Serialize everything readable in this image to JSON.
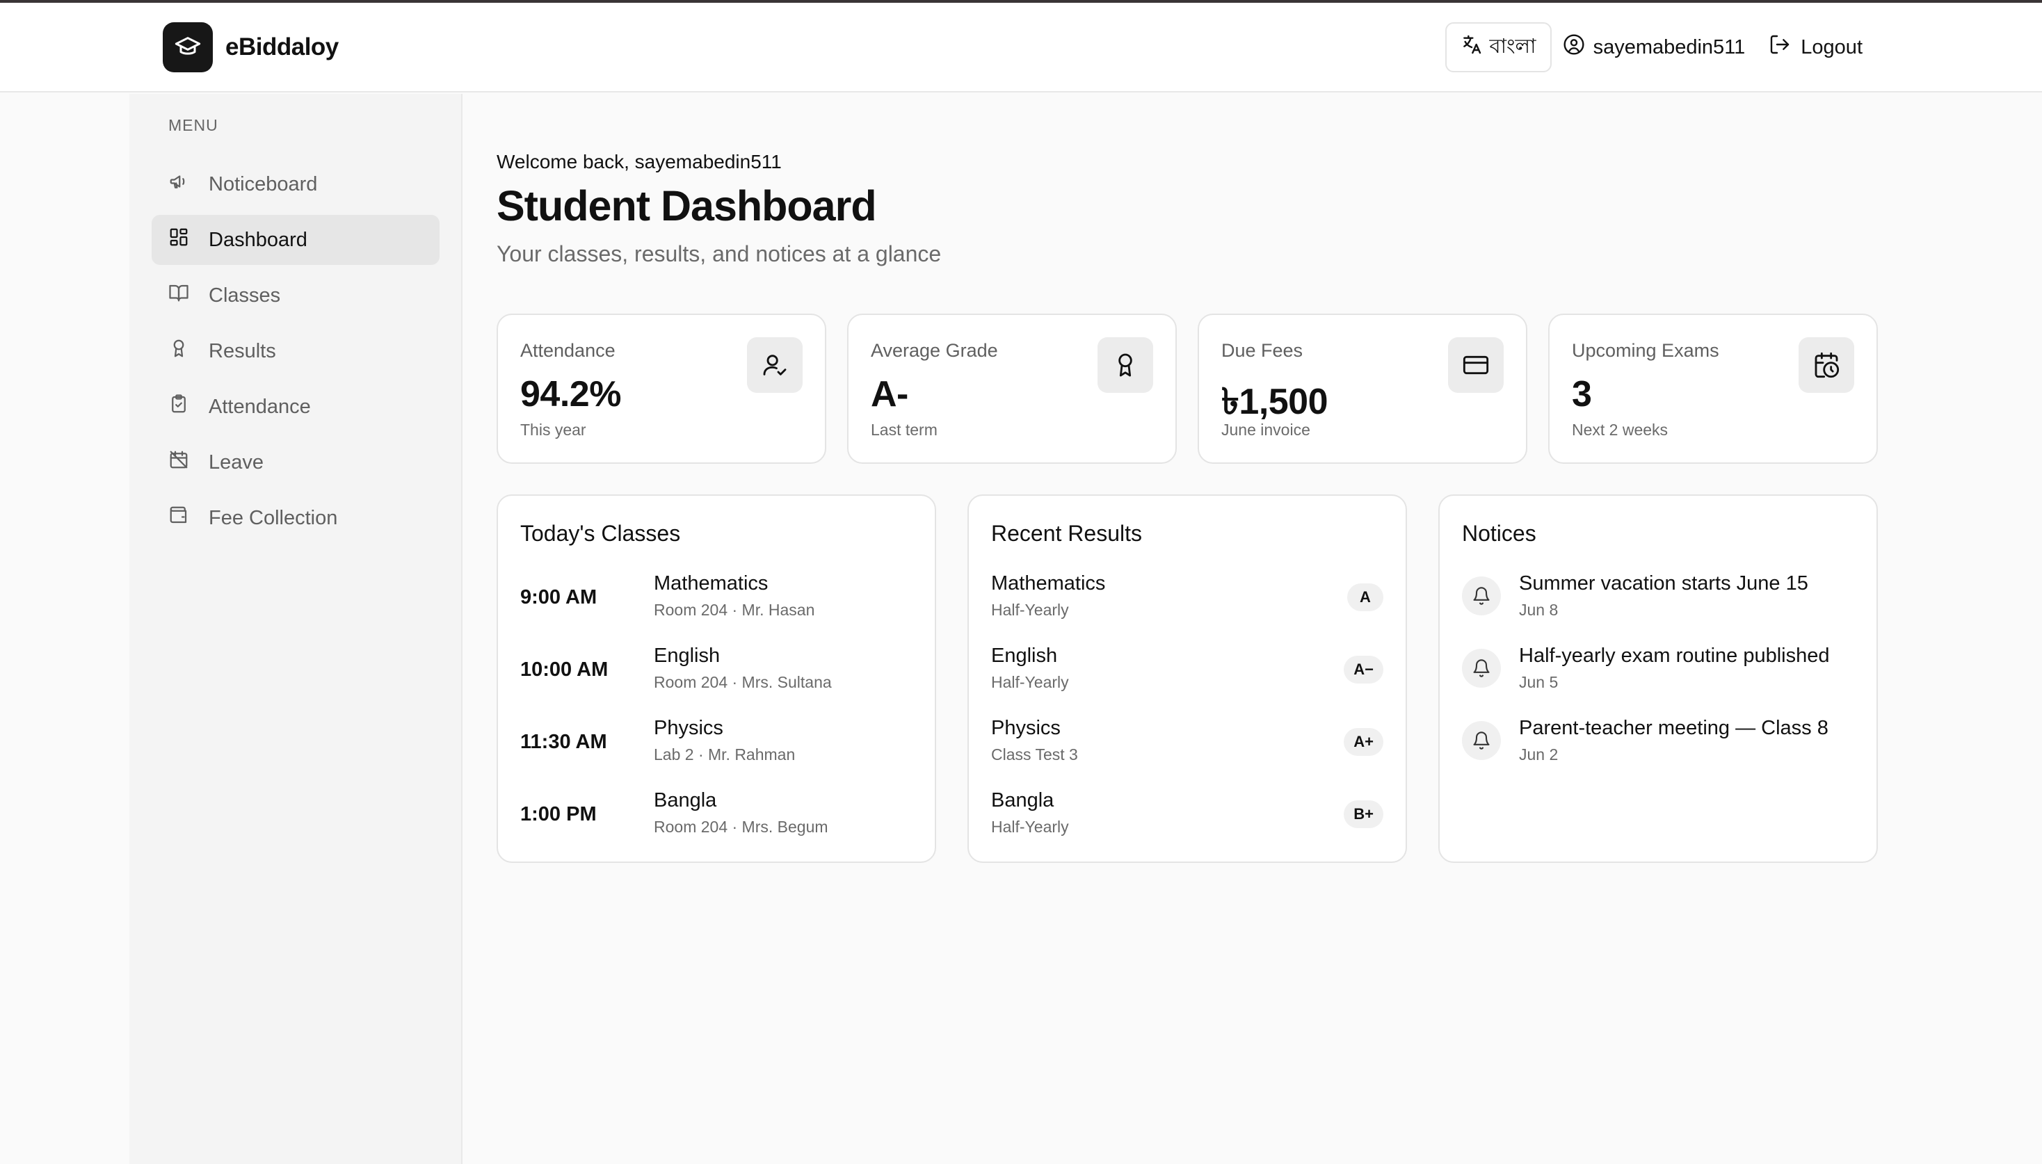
{
  "header": {
    "brand": "eBiddaloy",
    "language_label": "বাংলা",
    "username": "sayemabedin511",
    "logout_label": "Logout"
  },
  "sidebar": {
    "menu_label": "MENU",
    "items": [
      {
        "label": "Noticeboard",
        "icon": "megaphone-icon"
      },
      {
        "label": "Dashboard",
        "icon": "dashboard-icon",
        "active": true
      },
      {
        "label": "Classes",
        "icon": "book-icon"
      },
      {
        "label": "Results",
        "icon": "award-icon"
      },
      {
        "label": "Attendance",
        "icon": "clipboard-check-icon"
      },
      {
        "label": "Leave",
        "icon": "calendar-off-icon"
      },
      {
        "label": "Fee Collection",
        "icon": "wallet-icon"
      }
    ]
  },
  "main": {
    "welcome": "Welcome back, sayemabedin511",
    "title": "Student Dashboard",
    "subtitle": "Your classes, results, and notices at a glance",
    "stats": [
      {
        "label": "Attendance",
        "value": "94.2%",
        "sub": "This year",
        "icon": "user-check-icon"
      },
      {
        "label": "Average Grade",
        "value": "A-",
        "sub": "Last term",
        "icon": "award-icon"
      },
      {
        "label": "Due Fees",
        "value": "৳1,500",
        "sub": "June invoice",
        "icon": "credit-card-icon"
      },
      {
        "label": "Upcoming Exams",
        "value": "3",
        "sub": "Next 2 weeks",
        "icon": "calendar-clock-icon"
      }
    ],
    "classes": {
      "title": "Today's Classes",
      "rows": [
        {
          "time": "9:00 AM",
          "subject": "Mathematics",
          "detail": "Room 204 · Mr. Hasan"
        },
        {
          "time": "10:00 AM",
          "subject": "English",
          "detail": "Room 204 · Mrs. Sultana"
        },
        {
          "time": "11:30 AM",
          "subject": "Physics",
          "detail": "Lab 2 · Mr. Rahman"
        },
        {
          "time": "1:00 PM",
          "subject": "Bangla",
          "detail": "Room 204 · Mrs. Begum"
        }
      ]
    },
    "results": {
      "title": "Recent Results",
      "rows": [
        {
          "subject": "Mathematics",
          "exam": "Half-Yearly",
          "grade": "A"
        },
        {
          "subject": "English",
          "exam": "Half-Yearly",
          "grade": "A−"
        },
        {
          "subject": "Physics",
          "exam": "Class Test 3",
          "grade": "A+"
        },
        {
          "subject": "Bangla",
          "exam": "Half-Yearly",
          "grade": "B+"
        }
      ]
    },
    "notices": {
      "title": "Notices",
      "rows": [
        {
          "text": "Summer vacation starts June 15",
          "date": "Jun 8"
        },
        {
          "text": "Half-yearly exam routine published",
          "date": "Jun 5"
        },
        {
          "text": "Parent-teacher meeting — Class 8",
          "date": "Jun 2"
        }
      ]
    }
  }
}
